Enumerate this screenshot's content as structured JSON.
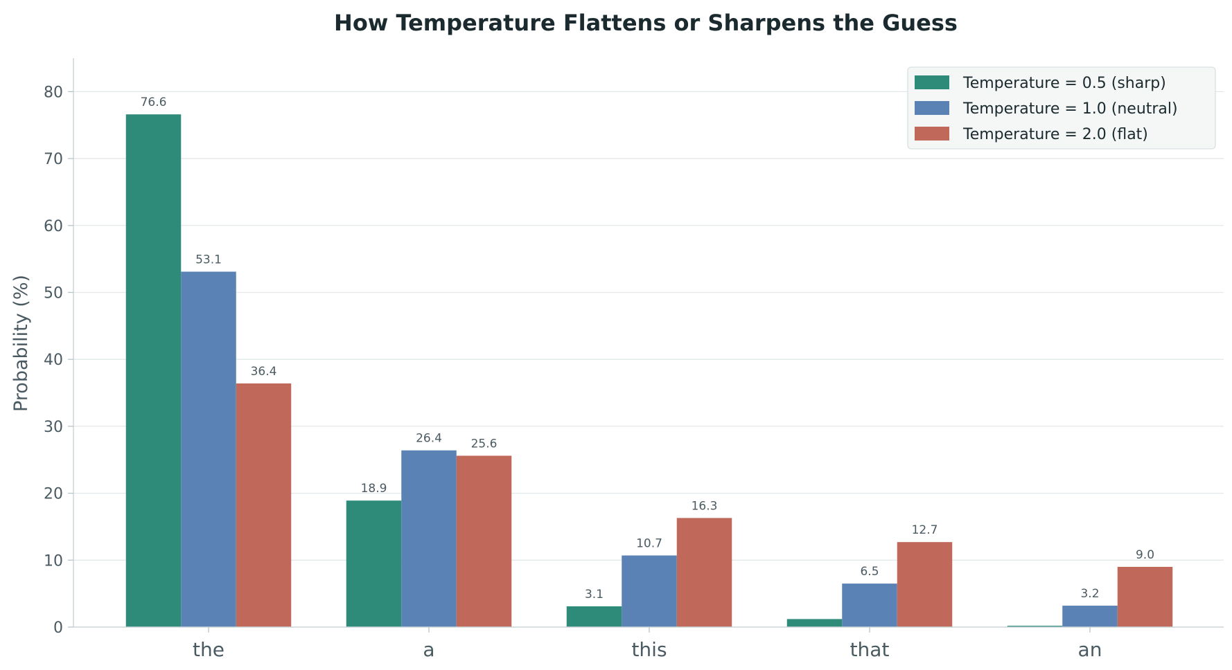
{
  "chart_data": {
    "type": "bar",
    "title": "How Temperature Flattens or Sharpens the Guess",
    "xlabel": "",
    "ylabel": "Probability (%)",
    "ylim": [
      0,
      85
    ],
    "yticks": [
      0,
      10,
      20,
      30,
      40,
      50,
      60,
      70,
      80
    ],
    "grid": "horizontal",
    "legend_position": "top-right",
    "categories": [
      "the",
      "a",
      "this",
      "that",
      "an"
    ],
    "series": [
      {
        "name": "Temperature = 0.5 (sharp)",
        "color": "#2e8b7a",
        "values": [
          76.6,
          18.9,
          3.1,
          1.2,
          0.2
        ],
        "labels": [
          "76.6",
          "18.9",
          "3.1",
          "",
          ""
        ]
      },
      {
        "name": "Temperature = 1.0 (neutral)",
        "color": "#5b82b5",
        "values": [
          53.1,
          26.4,
          10.7,
          6.5,
          3.2
        ],
        "labels": [
          "53.1",
          "26.4",
          "10.7",
          "6.5",
          "3.2"
        ]
      },
      {
        "name": "Temperature = 2.0 (flat)",
        "color": "#c0695a",
        "values": [
          36.4,
          25.6,
          16.3,
          12.7,
          9.0
        ],
        "labels": [
          "36.4",
          "25.6",
          "16.3",
          "12.7",
          "9.0"
        ]
      }
    ]
  }
}
